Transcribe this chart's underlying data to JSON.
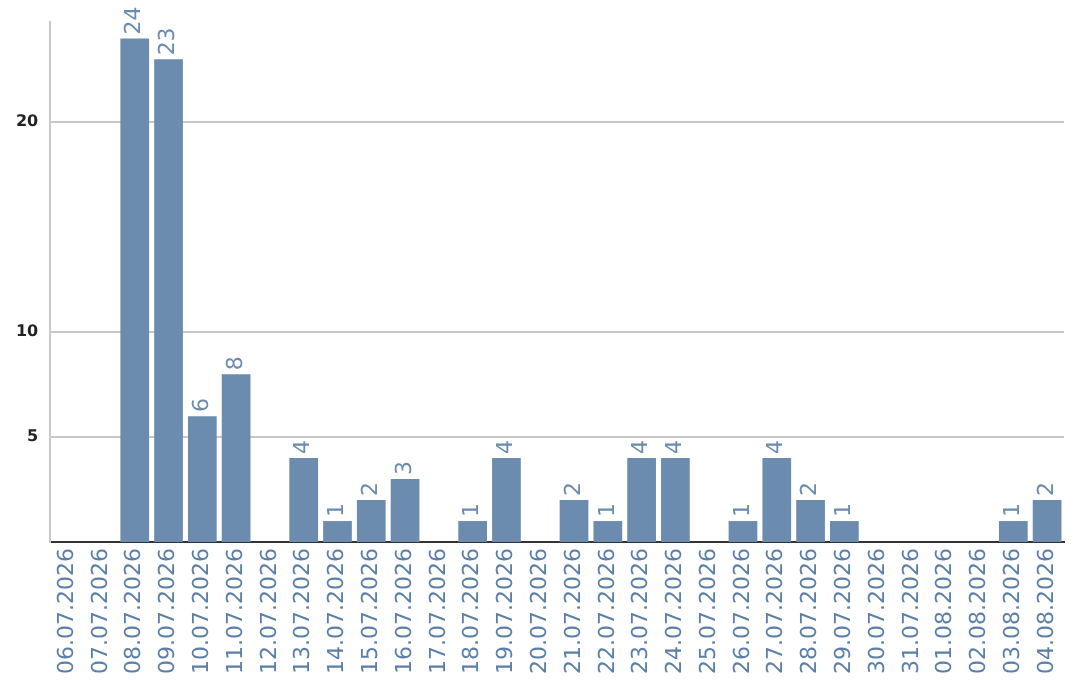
{
  "chart_data": {
    "type": "bar",
    "categories": [
      "06.07.2026",
      "07.07.2026",
      "08.07.2026",
      "09.07.2026",
      "10.07.2026",
      "11.07.2026",
      "12.07.2026",
      "13.07.2026",
      "14.07.2026",
      "15.07.2026",
      "16.07.2026",
      "17.07.2026",
      "18.07.2026",
      "19.07.2026",
      "20.07.2026",
      "21.07.2026",
      "22.07.2026",
      "23.07.2026",
      "24.07.2026",
      "25.07.2026",
      "26.07.2026",
      "27.07.2026",
      "28.07.2026",
      "29.07.2026",
      "30.07.2026",
      "31.07.2026",
      "01.08.2026",
      "02.08.2026",
      "03.08.2026",
      "04.08.2026"
    ],
    "values": [
      null,
      null,
      24,
      23,
      6,
      8,
      null,
      4,
      1,
      2,
      3,
      null,
      1,
      4,
      null,
      2,
      1,
      4,
      4,
      null,
      1,
      4,
      2,
      1,
      null,
      null,
      null,
      null,
      1,
      2
    ],
    "color": "#6b8cae",
    "ylim": [
      0,
      24.8
    ],
    "yticks": [
      5,
      10,
      20
    ],
    "grid": "y",
    "legend": false,
    "data_labels": true
  }
}
